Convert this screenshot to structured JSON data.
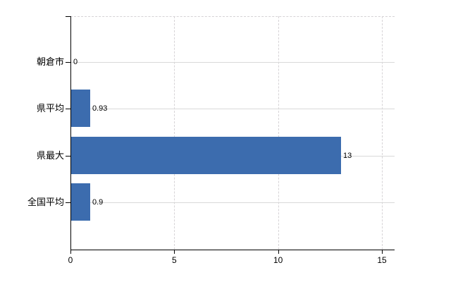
{
  "chart_data": {
    "type": "bar",
    "orientation": "horizontal",
    "title": "",
    "xlabel": "",
    "ylabel": "",
    "categories": [
      "朝倉市",
      "県平均",
      "県最大",
      "全国平均"
    ],
    "values": [
      0,
      0.93,
      13,
      0.9
    ],
    "value_labels": [
      "0",
      "0.93",
      "13",
      "0.9"
    ],
    "xlim": [
      0,
      15
    ],
    "x_ticks": [
      0,
      5,
      10,
      15
    ],
    "x_tick_labels": [
      "0",
      "5",
      "10",
      "15"
    ],
    "grid": true,
    "legend_position": "none",
    "bar_color": "#3c6cae",
    "grid_color": "#d9d9d9",
    "axis_color": "#000000",
    "text_color": "#000000",
    "background_color": "#ffffff"
  }
}
